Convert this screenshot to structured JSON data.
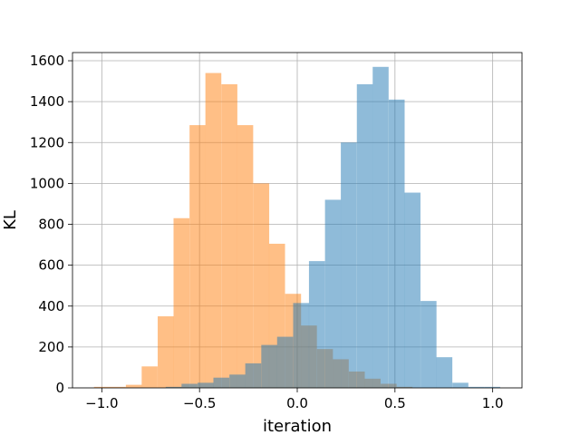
{
  "chart_data": {
    "type": "bar",
    "title": "",
    "xlabel": "iteration",
    "ylabel": "KL",
    "xlim": [
      -1.15,
      1.15
    ],
    "ylim": [
      0,
      1640
    ],
    "xticks": [
      -1.0,
      -0.5,
      0.0,
      0.5,
      1.0
    ],
    "xtick_labels": [
      "−1.0",
      "−0.5",
      "0.0",
      "0.5",
      "1.0"
    ],
    "yticks": [
      0,
      200,
      400,
      600,
      800,
      1000,
      1200,
      1400,
      1600
    ],
    "ytick_labels": [
      "0",
      "200",
      "400",
      "600",
      "800",
      "1000",
      "1200",
      "1400",
      "1600"
    ],
    "grid": true,
    "legend": "none",
    "bin_width": 0.0815,
    "series": [
      {
        "color": "#ff7f0e",
        "alpha": 0.5,
        "bin_starts": [
          -1.04,
          -0.959,
          -0.877,
          -0.796,
          -0.714,
          -0.633,
          -0.551,
          -0.47,
          -0.388,
          -0.307,
          -0.225,
          -0.144,
          -0.062,
          0.019,
          0.101,
          0.182,
          0.264,
          0.345,
          0.427,
          0.508
        ],
        "values": [
          5,
          5,
          15,
          105,
          350,
          830,
          1285,
          1540,
          1485,
          1285,
          1000,
          705,
          460,
          305,
          190,
          140,
          80,
          45,
          20,
          5
        ]
      },
      {
        "color": "#1f77b4",
        "alpha": 0.5,
        "bin_starts": [
          -0.673,
          -0.592,
          -0.51,
          -0.429,
          -0.347,
          -0.266,
          -0.184,
          -0.103,
          -0.021,
          0.06,
          0.142,
          0.223,
          0.305,
          0.386,
          0.468,
          0.549,
          0.631,
          0.712,
          0.794,
          0.875,
          0.957
        ],
        "values": [
          5,
          20,
          25,
          50,
          65,
          120,
          210,
          250,
          415,
          620,
          920,
          1200,
          1485,
          1570,
          1410,
          955,
          425,
          150,
          25,
          5,
          5
        ]
      }
    ]
  }
}
